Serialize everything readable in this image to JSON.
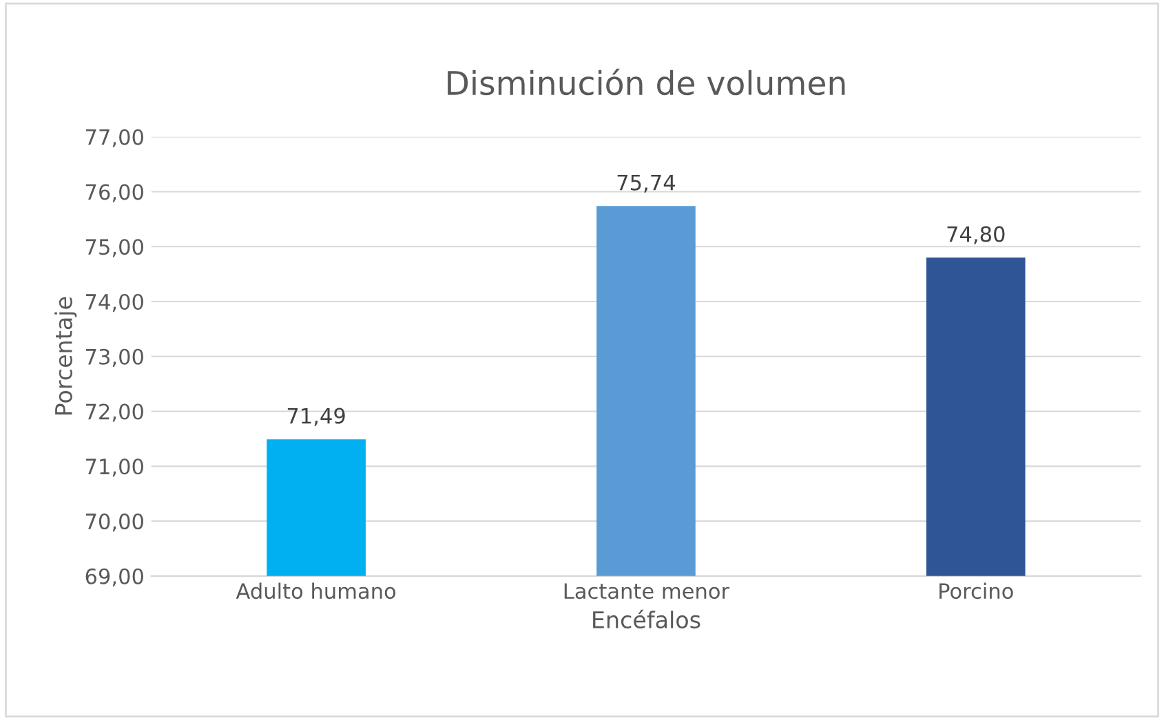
{
  "chart_data": {
    "type": "bar",
    "title": "Disminución de volumen",
    "xlabel": "Encéfalos",
    "ylabel": "Porcentaje",
    "categories": [
      "Adulto humano",
      "Lactante menor",
      "Porcino"
    ],
    "values": [
      71.49,
      75.74,
      74.8
    ],
    "colors": [
      "#00b0f0",
      "#5b9bd5",
      "#2f5597"
    ],
    "value_labels": [
      "71,49",
      "75,74",
      "74,80"
    ],
    "ylim": [
      69,
      77
    ],
    "yticks": [
      {
        "value": 69,
        "label": "69,00"
      },
      {
        "value": 70,
        "label": "70,00"
      },
      {
        "value": 71,
        "label": "71,00"
      },
      {
        "value": 72,
        "label": "72,00"
      },
      {
        "value": 73,
        "label": "73,00"
      },
      {
        "value": 74,
        "label": "74,00"
      },
      {
        "value": 75,
        "label": "75,00"
      },
      {
        "value": 76,
        "label": "76,00"
      },
      {
        "value": 77,
        "label": "77,00"
      }
    ],
    "grid": "y",
    "legend": false
  }
}
